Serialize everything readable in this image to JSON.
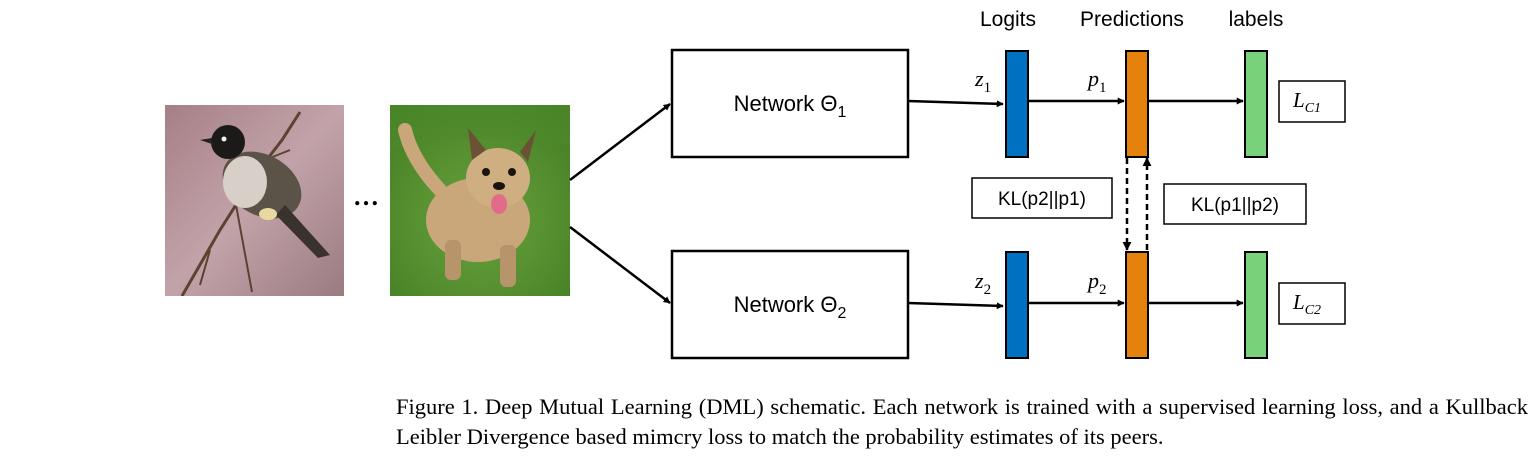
{
  "column_headers": {
    "logits": "Logits",
    "predictions": "Predictions",
    "labels": "labels"
  },
  "networks": [
    {
      "label": "Network Θ",
      "subscript": "1"
    },
    {
      "label": "Network Θ",
      "subscript": "2"
    }
  ],
  "logit_labels": [
    {
      "symbol": "z",
      "subscript": "1"
    },
    {
      "symbol": "z",
      "subscript": "2"
    }
  ],
  "prediction_labels": [
    {
      "symbol": "p",
      "subscript": "1"
    },
    {
      "symbol": "p",
      "subscript": "2"
    }
  ],
  "loss_labels": [
    {
      "symbol": "L",
      "subscript": "C1"
    },
    {
      "symbol": "L",
      "subscript": "C2"
    }
  ],
  "kl_labels": {
    "left": "KL(p2||p1)",
    "right": "KL(p1||p2)"
  },
  "ellipsis": "…",
  "images": [
    "bird",
    "dog"
  ],
  "colors": {
    "logit_bar": "#0070c0",
    "prediction_bar": "#e5820d",
    "label_bar": "#79d17a",
    "stroke": "#000000"
  },
  "caption": "Figure 1. Deep Mutual Learning (DML) schematic.  Each network is trained with a supervised learning loss, and a Kullback Leibler Divergence based mimcry loss to match the probability estimates of its peers."
}
